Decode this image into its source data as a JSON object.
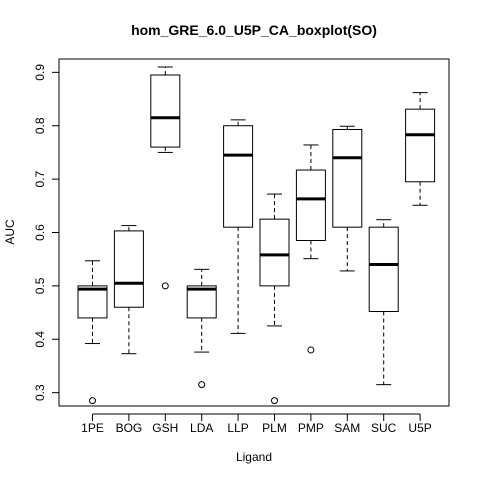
{
  "chart_data": {
    "type": "boxplot",
    "title": "hom_GRE_6.0_U5P_CA_boxplot(SO)",
    "xlabel": "Ligand",
    "ylabel": "AUC",
    "ylim": [
      0.275,
      0.925
    ],
    "yticks": [
      "0.3",
      "0.4",
      "0.5",
      "0.6",
      "0.7",
      "0.8",
      "0.9"
    ],
    "grid": false,
    "categories": [
      "1PE",
      "BOG",
      "GSH",
      "LDA",
      "LLP",
      "PLM",
      "PMP",
      "SAM",
      "SUC",
      "U5P"
    ],
    "boxes": [
      {
        "name": "1PE",
        "whisker_low": 0.392,
        "q1": 0.44,
        "median": 0.494,
        "q3": 0.5,
        "whisker_high": 0.547,
        "outliers": [
          0.285
        ]
      },
      {
        "name": "BOG",
        "whisker_low": 0.373,
        "q1": 0.46,
        "median": 0.505,
        "q3": 0.603,
        "whisker_high": 0.613,
        "outliers": []
      },
      {
        "name": "GSH",
        "whisker_low": 0.75,
        "q1": 0.76,
        "median": 0.815,
        "q3": 0.895,
        "whisker_high": 0.91,
        "outliers": [
          0.5
        ]
      },
      {
        "name": "LDA",
        "whisker_low": 0.376,
        "q1": 0.44,
        "median": 0.494,
        "q3": 0.5,
        "whisker_high": 0.531,
        "outliers": [
          0.315
        ]
      },
      {
        "name": "LLP",
        "whisker_low": 0.411,
        "q1": 0.61,
        "median": 0.745,
        "q3": 0.8,
        "whisker_high": 0.811,
        "outliers": []
      },
      {
        "name": "PLM",
        "whisker_low": 0.425,
        "q1": 0.5,
        "median": 0.558,
        "q3": 0.625,
        "whisker_high": 0.672,
        "outliers": [
          0.285
        ]
      },
      {
        "name": "PMP",
        "whisker_low": 0.551,
        "q1": 0.585,
        "median": 0.663,
        "q3": 0.717,
        "whisker_high": 0.764,
        "outliers": [
          0.38
        ]
      },
      {
        "name": "SAM",
        "whisker_low": 0.528,
        "q1": 0.61,
        "median": 0.74,
        "q3": 0.793,
        "whisker_high": 0.799,
        "outliers": []
      },
      {
        "name": "SUC",
        "whisker_low": 0.315,
        "q1": 0.452,
        "median": 0.54,
        "q3": 0.61,
        "whisker_high": 0.624,
        "outliers": []
      },
      {
        "name": "U5P",
        "whisker_low": 0.651,
        "q1": 0.695,
        "median": 0.783,
        "q3": 0.831,
        "whisker_high": 0.862,
        "outliers": []
      }
    ],
    "colors": {
      "box_fill": "#ffffff",
      "stroke": "#000000"
    }
  }
}
